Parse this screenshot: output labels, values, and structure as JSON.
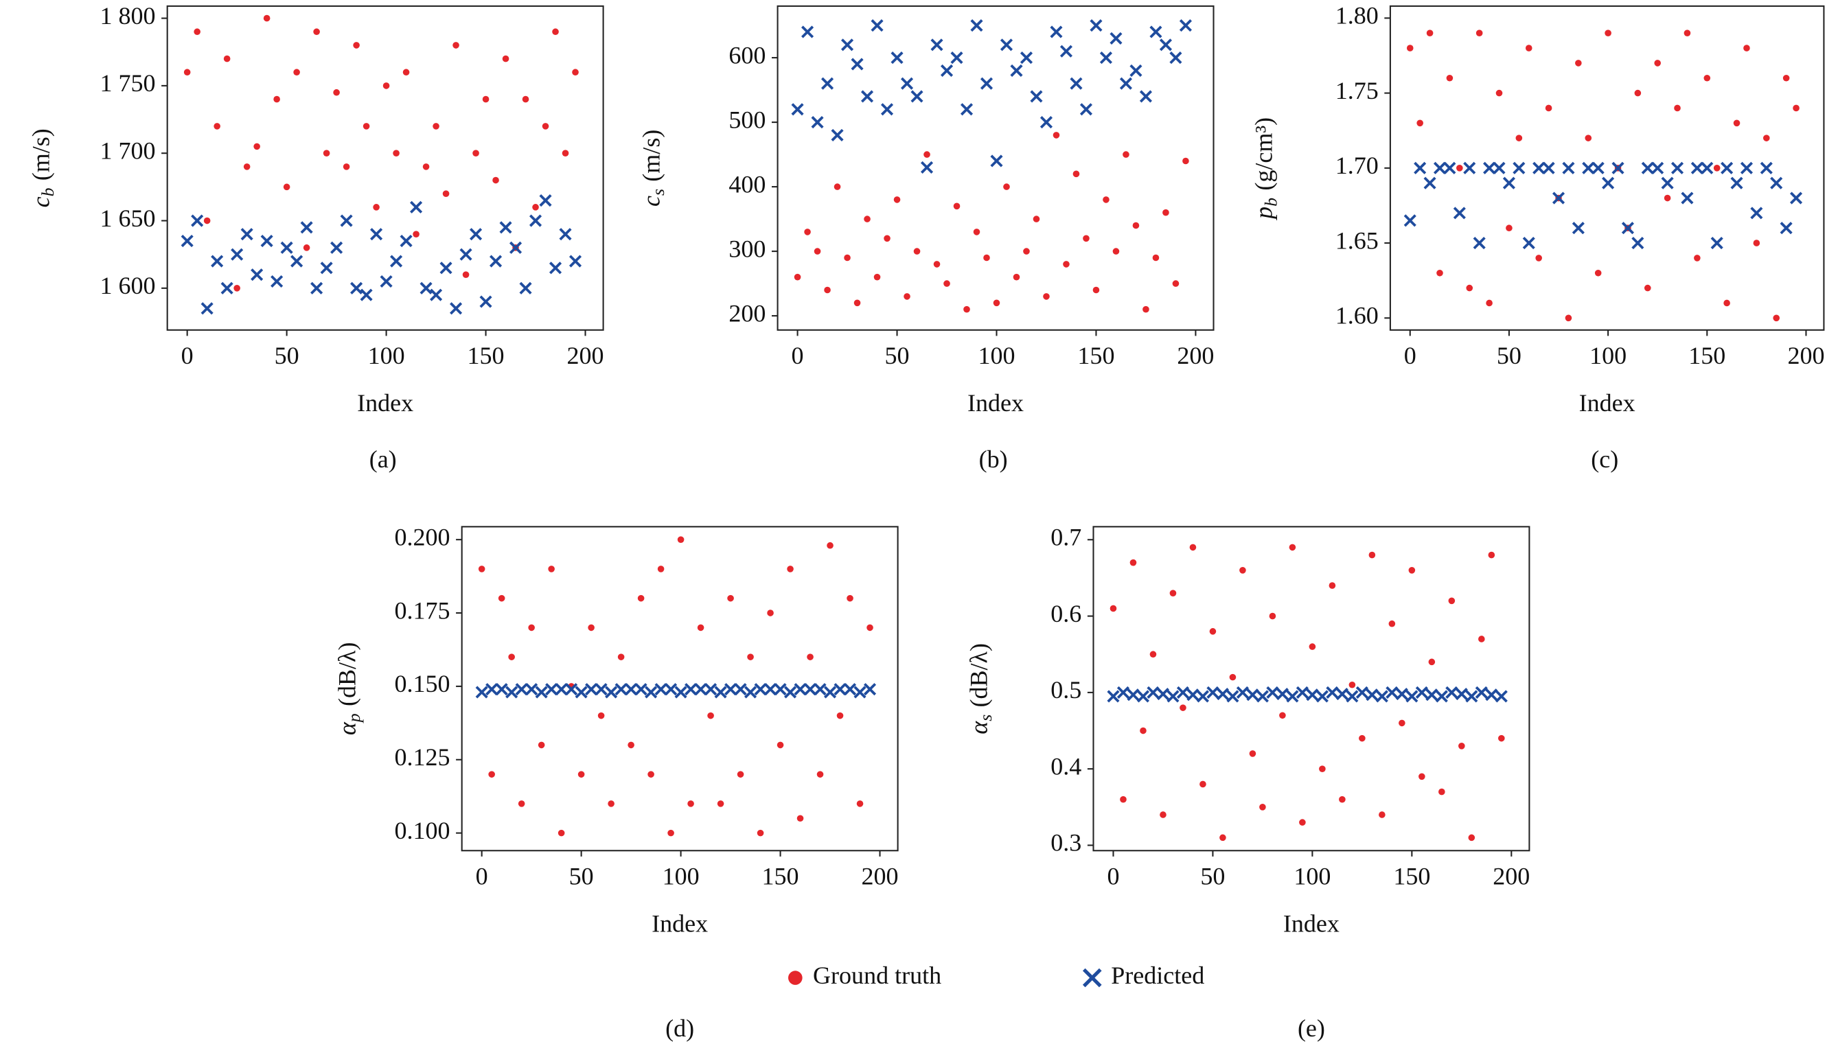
{
  "chart_data": [
    {
      "type": "scatter",
      "subcaption": "(a)",
      "xlabel": "Index",
      "ylabel": {
        "symbol": "c",
        "subscript": "b",
        "unit": "(m/s)"
      },
      "xlim": [
        -10,
        209
      ],
      "ylim": [
        1569,
        1809
      ],
      "xticks": [
        0,
        50,
        100,
        150,
        200
      ],
      "yticks": [
        {
          "value": 1600,
          "label": "1 600"
        },
        {
          "value": 1650,
          "label": "1 650"
        },
        {
          "value": 1700,
          "label": "1 700"
        },
        {
          "value": 1750,
          "label": "1 750"
        },
        {
          "value": 1800,
          "label": "1 800"
        }
      ],
      "x": [
        0,
        5,
        10,
        15,
        20,
        25,
        30,
        35,
        40,
        45,
        50,
        55,
        60,
        65,
        70,
        75,
        80,
        85,
        90,
        95,
        100,
        105,
        110,
        115,
        120,
        125,
        130,
        135,
        140,
        145,
        150,
        155,
        160,
        165,
        170,
        175,
        180,
        185,
        190,
        195
      ],
      "series": [
        {
          "name": "Ground truth",
          "color": "#e5262b",
          "marker": "dot",
          "values": [
            1760,
            1790,
            1650,
            1720,
            1770,
            1600,
            1690,
            1705,
            1800,
            1740,
            1675,
            1760,
            1630,
            1790,
            1700,
            1745,
            1690,
            1780,
            1720,
            1660,
            1750,
            1700,
            1760,
            1640,
            1690,
            1720,
            1670,
            1780,
            1610,
            1700,
            1740,
            1680,
            1770,
            1630,
            1740,
            1660,
            1720,
            1790,
            1700,
            1760
          ]
        },
        {
          "name": "Predicted",
          "color": "#1f4c9e",
          "marker": "x",
          "values": [
            1635,
            1650,
            1585,
            1620,
            1600,
            1625,
            1640,
            1610,
            1635,
            1605,
            1630,
            1620,
            1645,
            1600,
            1615,
            1630,
            1650,
            1600,
            1595,
            1640,
            1605,
            1620,
            1635,
            1660,
            1600,
            1595,
            1615,
            1585,
            1625,
            1640,
            1590,
            1620,
            1645,
            1630,
            1600,
            1650,
            1665,
            1615,
            1640,
            1620
          ]
        }
      ]
    },
    {
      "type": "scatter",
      "subcaption": "(b)",
      "xlabel": "Index",
      "ylabel": {
        "symbol": "c",
        "subscript": "s",
        "unit": "(m/s)"
      },
      "xlim": [
        -10,
        209
      ],
      "ylim": [
        178,
        680
      ],
      "xticks": [
        0,
        50,
        100,
        150,
        200
      ],
      "yticks": [
        200,
        300,
        400,
        500,
        600
      ],
      "x": [
        0,
        5,
        10,
        15,
        20,
        25,
        30,
        35,
        40,
        45,
        50,
        55,
        60,
        65,
        70,
        75,
        80,
        85,
        90,
        95,
        100,
        105,
        110,
        115,
        120,
        125,
        130,
        135,
        140,
        145,
        150,
        155,
        160,
        165,
        170,
        175,
        180,
        185,
        190,
        195
      ],
      "series": [
        {
          "name": "Ground truth",
          "color": "#e5262b",
          "marker": "dot",
          "values": [
            260,
            330,
            300,
            240,
            400,
            290,
            220,
            350,
            260,
            320,
            380,
            230,
            300,
            450,
            280,
            250,
            370,
            210,
            330,
            290,
            220,
            400,
            260,
            300,
            350,
            230,
            480,
            280,
            420,
            320,
            240,
            380,
            300,
            450,
            340,
            210,
            290,
            360,
            250,
            440
          ]
        },
        {
          "name": "Predicted",
          "color": "#1f4c9e",
          "marker": "x",
          "values": [
            520,
            640,
            500,
            560,
            480,
            620,
            590,
            540,
            650,
            520,
            600,
            560,
            540,
            430,
            620,
            580,
            600,
            520,
            650,
            560,
            440,
            620,
            580,
            600,
            540,
            500,
            640,
            610,
            560,
            520,
            650,
            600,
            630,
            560,
            580,
            540,
            640,
            620,
            600,
            650
          ]
        }
      ]
    },
    {
      "type": "scatter",
      "subcaption": "(c)",
      "xlabel": "Index",
      "ylabel": {
        "symbol": "p",
        "subscript": "b",
        "unit": "(g/cm³)"
      },
      "xlim": [
        -10,
        209
      ],
      "ylim": [
        1.592,
        1.808
      ],
      "xticks": [
        0,
        50,
        100,
        150,
        200
      ],
      "yticks": [
        {
          "value": 1.6,
          "label": "1.60"
        },
        1.65,
        {
          "value": 1.7,
          "label": "1.70"
        },
        1.75,
        {
          "value": 1.8,
          "label": "1.80"
        }
      ],
      "x": [
        0,
        5,
        10,
        15,
        20,
        25,
        30,
        35,
        40,
        45,
        50,
        55,
        60,
        65,
        70,
        75,
        80,
        85,
        90,
        95,
        100,
        105,
        110,
        115,
        120,
        125,
        130,
        135,
        140,
        145,
        150,
        155,
        160,
        165,
        170,
        175,
        180,
        185,
        190,
        195
      ],
      "series": [
        {
          "name": "Ground truth",
          "color": "#e5262b",
          "marker": "dot",
          "values": [
            1.78,
            1.73,
            1.79,
            1.63,
            1.76,
            1.7,
            1.62,
            1.79,
            1.61,
            1.75,
            1.66,
            1.72,
            1.78,
            1.64,
            1.74,
            1.68,
            1.6,
            1.77,
            1.72,
            1.63,
            1.79,
            1.7,
            1.66,
            1.75,
            1.62,
            1.77,
            1.68,
            1.74,
            1.79,
            1.64,
            1.76,
            1.7,
            1.61,
            1.73,
            1.78,
            1.65,
            1.72,
            1.6,
            1.76,
            1.74
          ]
        },
        {
          "name": "Predicted",
          "color": "#1f4c9e",
          "marker": "x",
          "values": [
            1.665,
            1.7,
            1.69,
            1.7,
            1.7,
            1.67,
            1.7,
            1.65,
            1.7,
            1.7,
            1.69,
            1.7,
            1.65,
            1.7,
            1.7,
            1.68,
            1.7,
            1.66,
            1.7,
            1.7,
            1.69,
            1.7,
            1.66,
            1.65,
            1.7,
            1.7,
            1.69,
            1.7,
            1.68,
            1.7,
            1.7,
            1.65,
            1.7,
            1.69,
            1.7,
            1.67,
            1.7,
            1.69,
            1.66,
            1.68
          ]
        }
      ]
    },
    {
      "type": "scatter",
      "subcaption": "(d)",
      "xlabel": "Index",
      "ylabel": {
        "symbol": "α",
        "subscript": "p",
        "unit": "(dB/λ)"
      },
      "xlim": [
        -10,
        209
      ],
      "ylim": [
        0.094,
        0.2044
      ],
      "xticks": [
        0,
        50,
        100,
        150,
        200
      ],
      "yticks": [
        {
          "value": 0.1,
          "label": "0.100"
        },
        0.125,
        {
          "value": 0.15,
          "label": "0.150"
        },
        0.175,
        {
          "value": 0.2,
          "label": "0.200"
        }
      ],
      "x": [
        0,
        5,
        10,
        15,
        20,
        25,
        30,
        35,
        40,
        45,
        50,
        55,
        60,
        65,
        70,
        75,
        80,
        85,
        90,
        95,
        100,
        105,
        110,
        115,
        120,
        125,
        130,
        135,
        140,
        145,
        150,
        155,
        160,
        165,
        170,
        175,
        180,
        185,
        190,
        195
      ],
      "series": [
        {
          "name": "Ground truth",
          "color": "#e5262b",
          "marker": "dot",
          "values": [
            0.19,
            0.12,
            0.18,
            0.16,
            0.11,
            0.17,
            0.13,
            0.19,
            0.1,
            0.15,
            0.12,
            0.17,
            0.14,
            0.11,
            0.16,
            0.13,
            0.18,
            0.12,
            0.19,
            0.1,
            0.2,
            0.11,
            0.17,
            0.14,
            0.11,
            0.18,
            0.12,
            0.16,
            0.1,
            0.175,
            0.13,
            0.19,
            0.105,
            0.16,
            0.12,
            0.198,
            0.14,
            0.18,
            0.11,
            0.17
          ]
        },
        {
          "name": "Predicted",
          "color": "#1f4c9e",
          "marker": "x",
          "values": [
            0.148,
            0.149,
            0.149,
            0.148,
            0.149,
            0.149,
            0.148,
            0.149,
            0.149,
            0.149,
            0.148,
            0.149,
            0.149,
            0.148,
            0.149,
            0.149,
            0.149,
            0.148,
            0.149,
            0.149,
            0.148,
            0.149,
            0.149,
            0.149,
            0.148,
            0.149,
            0.149,
            0.148,
            0.149,
            0.149,
            0.149,
            0.148,
            0.149,
            0.149,
            0.149,
            0.148,
            0.149,
            0.149,
            0.148,
            0.149
          ]
        }
      ]
    },
    {
      "type": "scatter",
      "subcaption": "(e)",
      "xlabel": "Index",
      "ylabel": {
        "symbol": "α",
        "subscript": "s",
        "unit": "(dB/λ)"
      },
      "xlim": [
        -10,
        209
      ],
      "ylim": [
        0.293,
        0.717
      ],
      "xticks": [
        0,
        50,
        100,
        150,
        200
      ],
      "yticks": [
        0.3,
        0.4,
        0.5,
        0.6,
        0.7
      ],
      "x": [
        0,
        5,
        10,
        15,
        20,
        25,
        30,
        35,
        40,
        45,
        50,
        55,
        60,
        65,
        70,
        75,
        80,
        85,
        90,
        95,
        100,
        105,
        110,
        115,
        120,
        125,
        130,
        135,
        140,
        145,
        150,
        155,
        160,
        165,
        170,
        175,
        180,
        185,
        190,
        195
      ],
      "series": [
        {
          "name": "Ground truth",
          "color": "#e5262b",
          "marker": "dot",
          "values": [
            0.61,
            0.36,
            0.67,
            0.45,
            0.55,
            0.34,
            0.63,
            0.48,
            0.69,
            0.38,
            0.58,
            0.31,
            0.52,
            0.66,
            0.42,
            0.35,
            0.6,
            0.47,
            0.69,
            0.33,
            0.56,
            0.4,
            0.64,
            0.36,
            0.51,
            0.44,
            0.68,
            0.34,
            0.59,
            0.46,
            0.66,
            0.39,
            0.54,
            0.37,
            0.62,
            0.43,
            0.31,
            0.57,
            0.68,
            0.44
          ]
        },
        {
          "name": "Predicted",
          "color": "#1f4c9e",
          "marker": "x",
          "values": [
            0.495,
            0.5,
            0.497,
            0.495,
            0.5,
            0.498,
            0.495,
            0.5,
            0.497,
            0.495,
            0.5,
            0.498,
            0.495,
            0.5,
            0.497,
            0.495,
            0.5,
            0.498,
            0.495,
            0.5,
            0.497,
            0.495,
            0.5,
            0.498,
            0.495,
            0.5,
            0.497,
            0.495,
            0.5,
            0.498,
            0.495,
            0.5,
            0.497,
            0.495,
            0.5,
            0.498,
            0.495,
            0.5,
            0.497,
            0.495
          ]
        }
      ]
    }
  ]
}
